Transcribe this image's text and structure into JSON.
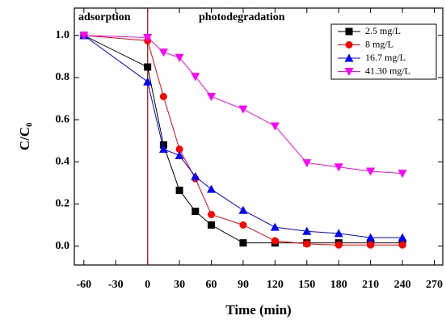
{
  "chart_data": {
    "type": "line",
    "xlabel": "Time (min)",
    "ylabel": "C/C₀",
    "annotations": [
      "adsorption",
      "photodegradation"
    ],
    "divider_x": 0,
    "divider_color": "#cc0000",
    "x": [
      -60,
      0,
      15,
      30,
      45,
      60,
      90,
      120,
      150,
      180,
      210,
      240
    ],
    "series": [
      {
        "name": "2.5 mg/L",
        "color": "#000000",
        "marker": "square",
        "values": [
          1.0,
          0.85,
          0.48,
          0.265,
          0.165,
          0.1,
          0.015,
          0.015,
          0.015,
          0.015,
          0.015,
          0.015
        ]
      },
      {
        "name": "8 mg/L",
        "color": "#ff0000",
        "marker": "circle",
        "values": [
          1.0,
          0.975,
          0.71,
          0.46,
          0.32,
          0.15,
          0.1,
          0.025,
          0.01,
          0.005,
          0.005,
          0.005
        ]
      },
      {
        "name": "16.7 mg/L",
        "color": "#0000ff",
        "marker": "triangle-up",
        "values": [
          1.0,
          0.78,
          0.46,
          0.43,
          0.33,
          0.27,
          0.17,
          0.09,
          0.07,
          0.06,
          0.04,
          0.04
        ]
      },
      {
        "name": "41.30 mg/L",
        "color": "#ff00ff",
        "marker": "triangle-down",
        "values": [
          1.0,
          0.99,
          0.92,
          0.895,
          0.805,
          0.71,
          0.65,
          0.57,
          0.395,
          0.375,
          0.355,
          0.345
        ]
      }
    ],
    "xlim": [
      -69,
      278
    ],
    "ylim": [
      -0.09,
      1.13
    ],
    "xticks": [
      -60,
      -30,
      0,
      30,
      60,
      90,
      120,
      150,
      180,
      210,
      240,
      270
    ],
    "yticks": [
      {
        "value": 0,
        "label": "0.0"
      },
      {
        "value": 0.2,
        "label": "0.2"
      },
      {
        "value": 0.4,
        "label": "0.4"
      },
      {
        "value": 0.6,
        "label": "0.6"
      },
      {
        "value": 0.8,
        "label": "0.8"
      },
      {
        "value": 1,
        "label": "1.0"
      }
    ],
    "legend": "upper right"
  }
}
